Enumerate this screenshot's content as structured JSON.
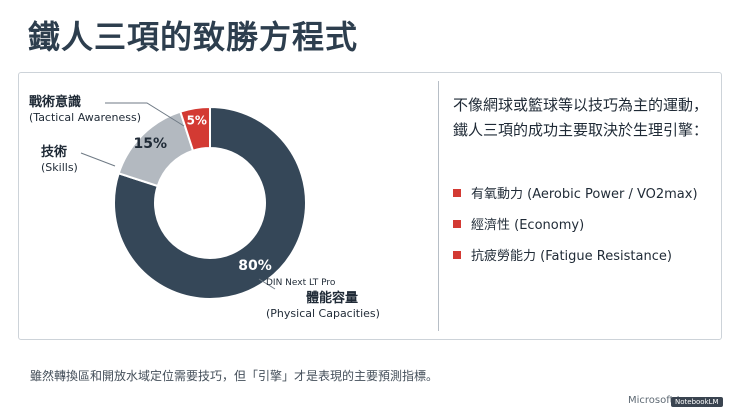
{
  "title": "鐵人三項的致勝方程式",
  "chart_data": {
    "type": "pie",
    "variant": "donut",
    "slices": [
      {
        "label": "體能容量",
        "sublabel": "(Physical Capacities)",
        "value": 80,
        "value_label": "80%",
        "color": "#354758"
      },
      {
        "label": "技術",
        "sublabel": "(Skills)",
        "value": 15,
        "value_label": "15%",
        "color": "#b3b9c0"
      },
      {
        "label": "戰術意識",
        "sublabel": "(Tactical Awareness)",
        "value": 5,
        "value_label": "5%",
        "color": "#d33a33"
      }
    ],
    "font_note": "DIN Next LT Pro"
  },
  "intro_text": "不像網球或籃球等以技巧為主的運動，鐵人三項的成功主要取決於生理引擎：",
  "factors": [
    "有氧動力 (Aerobic Power / VO2max)",
    "經濟性 (Economy)",
    "抗疲勞能力 (Fatigue Resistance)"
  ],
  "accent_color": "#d33a33",
  "footnote": "雖然轉換區和開放水域定位需要技巧，但「引擎」才是表現的主要預測指標。",
  "watermark_text": "Microsoft J",
  "watermark_logo": "NotebookLM"
}
